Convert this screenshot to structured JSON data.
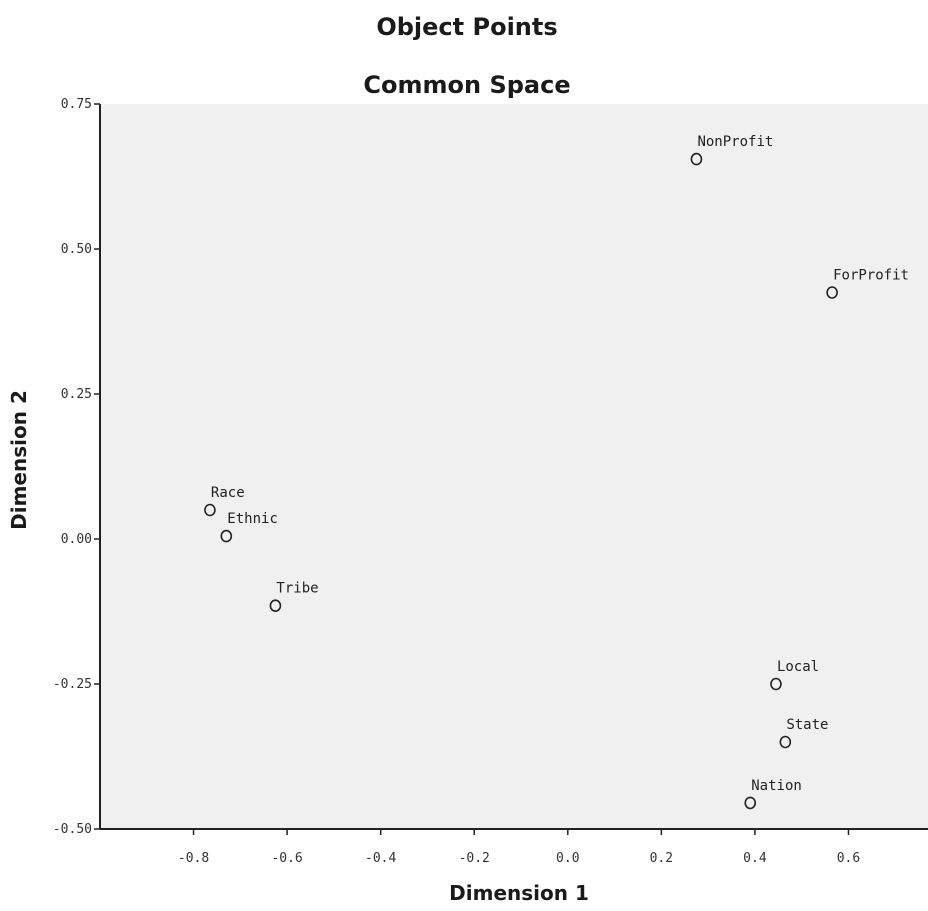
{
  "chart_data": {
    "type": "scatter",
    "title": "Object Points",
    "subtitle": "Common Space",
    "xlabel": "Dimension 1",
    "ylabel": "Dimension 2",
    "xlim": [
      -1.0,
      0.77
    ],
    "ylim": [
      -0.5,
      0.75
    ],
    "xticks": [
      {
        "value": -0.8,
        "label": "-0.8"
      },
      {
        "value": -0.6,
        "label": "-0.6"
      },
      {
        "value": -0.4,
        "label": "-0.4"
      },
      {
        "value": -0.2,
        "label": "-0.2"
      },
      {
        "value": 0.0,
        "label": "0.0"
      },
      {
        "value": 0.2,
        "label": "0.2"
      },
      {
        "value": 0.4,
        "label": "0.4"
      },
      {
        "value": 0.6,
        "label": "0.6"
      }
    ],
    "yticks": [
      {
        "value": 0.75,
        "label": "0.75"
      },
      {
        "value": 0.5,
        "label": "0.50"
      },
      {
        "value": 0.25,
        "label": "0.25"
      },
      {
        "value": 0.0,
        "label": "0.00"
      },
      {
        "value": -0.25,
        "label": "-0.25"
      },
      {
        "value": -0.5,
        "label": "-0.50"
      }
    ],
    "grid": false,
    "points": [
      {
        "label": "NonProfit",
        "x": 0.275,
        "y": 0.655
      },
      {
        "label": "ForProfit",
        "x": 0.565,
        "y": 0.425
      },
      {
        "label": "Race",
        "x": -0.765,
        "y": 0.05
      },
      {
        "label": "Ethnic",
        "x": -0.73,
        "y": 0.005
      },
      {
        "label": "Tribe",
        "x": -0.625,
        "y": -0.115
      },
      {
        "label": "Local",
        "x": 0.445,
        "y": -0.25
      },
      {
        "label": "State",
        "x": 0.465,
        "y": -0.35
      },
      {
        "label": "Nation",
        "x": 0.39,
        "y": -0.455
      }
    ],
    "colors": {
      "plot_background": "#f0f0f0",
      "axis": "#222222",
      "marker": "#222222"
    }
  }
}
